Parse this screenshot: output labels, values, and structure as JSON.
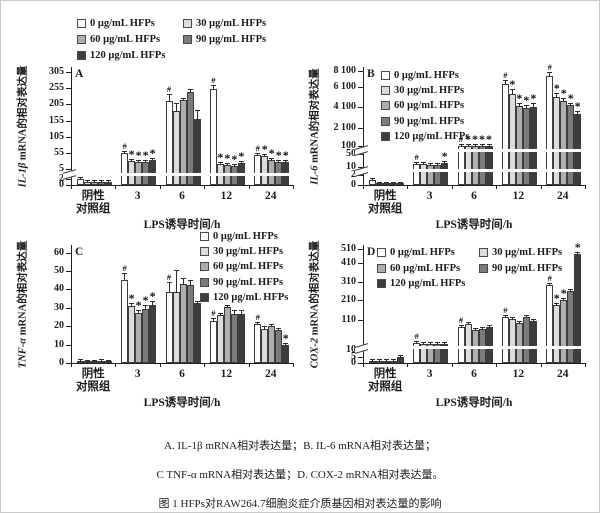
{
  "figure": {
    "captions": [
      "A. IL-1β mRNA相对表达量；B. IL-6 mRNA相对表达量；",
      "C TNF-α mRNA相对表达量；D. COX-2 mRNA相对表达量。",
      "图 1 HFPs对RAW264.7细胞炎症介质基因相对表达量的影响"
    ]
  },
  "legend": {
    "labels": [
      "0 μg/mL HFPs",
      "30 μg/mL HFPs",
      "60 μg/mL HFPs",
      "90 μg/mL HFPs",
      "120 μg/mL HFPs"
    ],
    "colors": [
      "#ffffff",
      "#dcdcdc",
      "#aeaeae",
      "#7b7b7b",
      "#3d3d3d"
    ],
    "swatch_border": "#4a4a4a"
  },
  "x_axis": {
    "label": "LPS诱导时间/h",
    "tick_lines": [
      [
        "阴性",
        "对照组"
      ],
      [
        "3"
      ],
      [
        "6"
      ],
      [
        "12"
      ],
      [
        "24"
      ]
    ]
  },
  "significance_marks": {
    "hash": "#",
    "star": "*"
  },
  "chart_data": [
    {
      "type": "bar",
      "panel": "A",
      "ylabel": {
        "italic": "IL-1β",
        "rest": " mRNA的相对表达量"
      },
      "categories": [
        "阴性对照组",
        "3",
        "6",
        "12",
        "24"
      ],
      "y_ticks": [
        {
          "label": "0",
          "v": 0,
          "f": 0.0
        },
        {
          "label": "2",
          "v": 2,
          "f": 0.05
        },
        {
          "label": "5",
          "v": 5,
          "f": 0.135
        },
        {
          "label": "55",
          "v": 55,
          "f": 0.272
        },
        {
          "label": "105",
          "v": 105,
          "f": 0.409
        },
        {
          "label": "155",
          "v": 155,
          "f": 0.546
        },
        {
          "label": "205",
          "v": 205,
          "f": 0.683
        },
        {
          "label": "255",
          "v": 255,
          "f": 0.82
        },
        {
          "label": "305",
          "v": 305,
          "f": 0.957
        }
      ],
      "axis_break_marks": [
        0.09
      ],
      "axis_break_stripes": [
        0.09
      ],
      "legend_position": "above",
      "series": [
        {
          "name": "0 μg/mL HFPs",
          "values": [
            2,
            54,
            215,
            252,
            48
          ],
          "errors": [
            0.3,
            4,
            22,
            12,
            4
          ],
          "marks": [
            "",
            "#",
            "#",
            "#",
            "#"
          ]
        },
        {
          "name": "30 μg/mL HFPs",
          "values": [
            1,
            30,
            186,
            20,
            45
          ],
          "errors": [
            0.2,
            3,
            22,
            3,
            4
          ],
          "marks": [
            "",
            "*",
            "",
            "*",
            "*"
          ]
        },
        {
          "name": "60 μg/mL HFPs",
          "values": [
            1,
            26,
            220,
            17,
            33
          ],
          "errors": [
            0.2,
            3,
            6,
            3,
            3
          ],
          "marks": [
            "",
            "*",
            "",
            "*",
            "*"
          ]
        },
        {
          "name": "90 μg/mL HFPs",
          "values": [
            1,
            28,
            242,
            15,
            28
          ],
          "errors": [
            0.2,
            3,
            10,
            3,
            3
          ],
          "marks": [
            "",
            "*",
            "",
            "*",
            "*"
          ]
        },
        {
          "name": "120 μg/mL HFPs",
          "values": [
            1,
            33,
            160,
            25,
            28
          ],
          "errors": [
            0.2,
            4,
            28,
            4,
            3
          ],
          "marks": [
            "",
            "*",
            "",
            "*",
            "*"
          ]
        }
      ]
    },
    {
      "type": "bar",
      "panel": "B",
      "ylabel": {
        "italic": "IL-6",
        "rest": " mRNA的相对表达量"
      },
      "categories": [
        "阴性对照组",
        "3",
        "6",
        "12",
        "24"
      ],
      "y_ticks": [
        {
          "label": "0",
          "v": 0,
          "f": 0.0
        },
        {
          "label": "2",
          "v": 2,
          "f": 0.086
        },
        {
          "label": "10",
          "v": 10,
          "f": 0.155
        },
        {
          "label": "50",
          "v": 50,
          "f": 0.263
        },
        {
          "label": "100",
          "v": 100,
          "f": 0.331
        },
        {
          "label": "2 100",
          "v": 2100,
          "f": 0.487
        },
        {
          "label": "4 100",
          "v": 4100,
          "f": 0.663
        },
        {
          "label": "6 100",
          "v": 6100,
          "f": 0.83
        },
        {
          "label": "8 100",
          "v": 8100,
          "f": 0.965
        }
      ],
      "axis_break_marks": [
        0.12,
        0.295
      ],
      "axis_break_stripes": [
        0.12,
        0.295
      ],
      "legend_position": "inside-left",
      "series": [
        {
          "name": "0 μg/mL HFPs",
          "values": [
            1,
            20,
            105,
            6500,
            7500
          ],
          "errors": [
            0.3,
            4,
            8,
            500,
            500
          ],
          "marks": [
            "",
            "#",
            "#",
            "#",
            "#"
          ]
        },
        {
          "name": "30 μg/mL HFPs",
          "values": [
            0.15,
            18,
            100,
            5400,
            5100
          ],
          "errors": [
            0.05,
            3,
            6,
            500,
            350
          ],
          "marks": [
            "",
            "",
            "*",
            "*",
            "*"
          ]
        },
        {
          "name": "60 μg/mL HFPs",
          "values": [
            0.15,
            16,
            100,
            4150,
            4700
          ],
          "errors": [
            0.05,
            3,
            6,
            350,
            300
          ],
          "marks": [
            "",
            "",
            "*",
            "*",
            "*"
          ]
        },
        {
          "name": "90 μg/mL HFPs",
          "values": [
            0.15,
            15,
            100,
            4000,
            4250
          ],
          "errors": [
            0.05,
            3,
            6,
            300,
            280
          ],
          "marks": [
            "",
            "",
            "*",
            "*",
            "*"
          ]
        },
        {
          "name": "120 μg/mL HFPs",
          "values": [
            0.15,
            22,
            98,
            4100,
            3400
          ],
          "errors": [
            0.05,
            4,
            8,
            350,
            250
          ],
          "marks": [
            "",
            "*",
            "*",
            "*",
            "*"
          ]
        }
      ]
    },
    {
      "type": "bar",
      "panel": "C",
      "ylabel": {
        "italic": "TNF-α",
        "rest": " mRNA的相对表达量"
      },
      "categories": [
        "阴性对照组",
        "3",
        "6",
        "12",
        "24"
      ],
      "y_ticks": [
        {
          "label": "0",
          "v": 0,
          "f": 0.0
        },
        {
          "label": "10",
          "v": 10,
          "f": 0.156
        },
        {
          "label": "20",
          "v": 20,
          "f": 0.312
        },
        {
          "label": "30",
          "v": 30,
          "f": 0.468
        },
        {
          "label": "40",
          "v": 40,
          "f": 0.624
        },
        {
          "label": "50",
          "v": 50,
          "f": 0.78
        },
        {
          "label": "60",
          "v": 60,
          "f": 0.936
        }
      ],
      "axis_break_marks": [],
      "axis_break_stripes": [],
      "legend_position": "top-right",
      "series": [
        {
          "name": "0 μg/mL HFPs",
          "values": [
            1,
            45,
            38.5,
            23,
            21
          ],
          "errors": [
            0.15,
            4,
            5.5,
            1.5,
            1.5
          ],
          "marks": [
            "",
            "#",
            "#",
            "#",
            "#"
          ]
        },
        {
          "name": "30 μg/mL HFPs",
          "values": [
            0.8,
            31,
            38.5,
            26,
            18.5
          ],
          "errors": [
            0.15,
            1.5,
            12,
            1,
            1.5
          ],
          "marks": [
            "",
            "*",
            "",
            "",
            ""
          ]
        },
        {
          "name": "60 μg/mL HFPs",
          "values": [
            0.8,
            27,
            43,
            30.5,
            20
          ],
          "errors": [
            0.15,
            2,
            3,
            1,
            0.8
          ],
          "marks": [
            "",
            "*",
            "",
            "",
            ""
          ]
        },
        {
          "name": "90 μg/mL HFPs",
          "values": [
            1,
            29.5,
            42.5,
            26.5,
            18
          ],
          "errors": [
            0.15,
            2,
            2.5,
            2.5,
            0.8
          ],
          "marks": [
            "",
            "*",
            "",
            "",
            ""
          ]
        },
        {
          "name": "120 μg/mL HFPs",
          "values": [
            0.8,
            31.5,
            32.5,
            26.5,
            10
          ],
          "errors": [
            0.15,
            2,
            1,
            2.5,
            1
          ],
          "marks": [
            "",
            "*",
            "",
            "",
            "*"
          ]
        }
      ]
    },
    {
      "type": "bar",
      "panel": "D",
      "ylabel": {
        "italic": "COX-2",
        "rest": " mRNA的相对表达量"
      },
      "categories": [
        "阴性对照组",
        "3",
        "6",
        "12",
        "24"
      ],
      "y_ticks": [
        {
          "label": "0",
          "v": 0,
          "f": 0.0
        },
        {
          "label": "5",
          "v": 5,
          "f": 0.053
        },
        {
          "label": "10",
          "v": 10,
          "f": 0.106
        },
        {
          "label": "110",
          "v": 110,
          "f": 0.368
        },
        {
          "label": "210",
          "v": 210,
          "f": 0.53
        },
        {
          "label": "310",
          "v": 310,
          "f": 0.69
        },
        {
          "label": "410",
          "v": 410,
          "f": 0.85
        },
        {
          "label": "510",
          "v": 510,
          "f": 0.965
        }
      ],
      "axis_break_marks": [
        0.13
      ],
      "axis_break_stripes": [
        0.13
      ],
      "legend_position": "inside-top",
      "series": [
        {
          "name": "0 μg/mL HFPs",
          "values": [
            2,
            35,
            85,
            122,
            290
          ],
          "errors": [
            0.4,
            2,
            5,
            6,
            12
          ],
          "marks": [
            "",
            "#",
            "#",
            "#",
            "#"
          ]
        },
        {
          "name": "30 μg/mL HFPs",
          "values": [
            2,
            32,
            95,
            114,
            185
          ],
          "errors": [
            0.4,
            2,
            5,
            4,
            8
          ],
          "marks": [
            "",
            "",
            "",
            "",
            "*"
          ]
        },
        {
          "name": "60 μg/mL HFPs",
          "values": [
            2,
            30,
            76,
            98,
            215
          ],
          "errors": [
            0.4,
            2,
            4,
            5,
            10
          ],
          "marks": [
            "",
            "",
            "",
            "",
            "*"
          ]
        },
        {
          "name": "90 μg/mL HFPs",
          "values": [
            2,
            31,
            80,
            126,
            260
          ],
          "errors": [
            0.4,
            2,
            4,
            7,
            12
          ],
          "marks": [
            "",
            "",
            "",
            "",
            ""
          ]
        },
        {
          "name": "120 μg/mL HFPs",
          "values": [
            5,
            32,
            85,
            104,
            475
          ],
          "errors": [
            1,
            2,
            4,
            9,
            14
          ],
          "marks": [
            "",
            "",
            "",
            "",
            "*"
          ]
        }
      ]
    }
  ]
}
